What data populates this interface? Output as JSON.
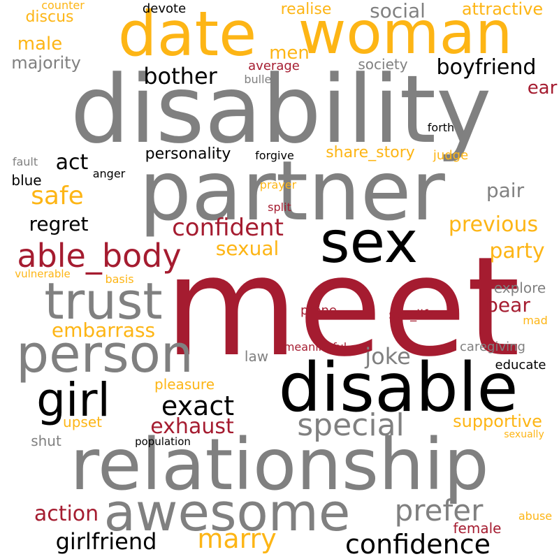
{
  "palette": {
    "gray": "#808080",
    "gold": "#fdb515",
    "crimson": "#a51c30",
    "black": "#000000"
  },
  "words": [
    {
      "text": "meet",
      "color": "crimson"
    },
    {
      "text": "disability",
      "color": "gray"
    },
    {
      "text": "partner",
      "color": "gray"
    },
    {
      "text": "relationship",
      "color": "gray"
    },
    {
      "text": "disable",
      "color": "black"
    },
    {
      "text": "date",
      "color": "gold"
    },
    {
      "text": "woman",
      "color": "gold"
    },
    {
      "text": "sex",
      "color": "black"
    },
    {
      "text": "person",
      "color": "gray"
    },
    {
      "text": "awesome",
      "color": "gray"
    },
    {
      "text": "trust",
      "color": "gray"
    },
    {
      "text": "girl",
      "color": "black"
    },
    {
      "text": "able_body",
      "color": "crimson"
    },
    {
      "text": "special",
      "color": "gray"
    },
    {
      "text": "prefer",
      "color": "gray"
    },
    {
      "text": "confidence",
      "color": "black"
    },
    {
      "text": "marry",
      "color": "gold"
    },
    {
      "text": "exact",
      "color": "black"
    },
    {
      "text": "girlfriend",
      "color": "black"
    },
    {
      "text": "safe",
      "color": "gold"
    },
    {
      "text": "confident",
      "color": "crimson"
    },
    {
      "text": "bother",
      "color": "black"
    },
    {
      "text": "boyfriend",
      "color": "black"
    },
    {
      "text": "social",
      "color": "gray"
    },
    {
      "text": "previous",
      "color": "gold"
    },
    {
      "text": "party",
      "color": "gold"
    },
    {
      "text": "joke",
      "color": "gray"
    },
    {
      "text": "act",
      "color": "black"
    },
    {
      "text": "embarrass",
      "color": "gold"
    },
    {
      "text": "exhaust",
      "color": "crimson"
    },
    {
      "text": "action",
      "color": "crimson"
    },
    {
      "text": "sexual",
      "color": "gold"
    },
    {
      "text": "pair",
      "color": "gray"
    },
    {
      "text": "bear",
      "color": "crimson"
    },
    {
      "text": "regret",
      "color": "black"
    },
    {
      "text": "men",
      "color": "gold"
    },
    {
      "text": "male",
      "color": "gold"
    },
    {
      "text": "ear",
      "color": "crimson"
    },
    {
      "text": "supportive",
      "color": "gold"
    },
    {
      "text": "attractive",
      "color": "gold"
    },
    {
      "text": "majority",
      "color": "gray"
    },
    {
      "text": "realise",
      "color": "gold"
    },
    {
      "text": "discus",
      "color": "gold"
    },
    {
      "text": "personality",
      "color": "black"
    },
    {
      "text": "share_story",
      "color": "gold"
    },
    {
      "text": "upset",
      "color": "gold"
    },
    {
      "text": "pleasure",
      "color": "gold"
    },
    {
      "text": "society",
      "color": "gray"
    },
    {
      "text": "law",
      "color": "gray"
    },
    {
      "text": "shut",
      "color": "gray"
    },
    {
      "text": "explore",
      "color": "gray"
    },
    {
      "text": "caregiving",
      "color": "gray"
    },
    {
      "text": "blue",
      "color": "black"
    },
    {
      "text": "average",
      "color": "crimson"
    },
    {
      "text": "female",
      "color": "crimson"
    },
    {
      "text": "sex_life",
      "color": "crimson"
    },
    {
      "text": "judge",
      "color": "gold"
    },
    {
      "text": "prone",
      "color": "crimson"
    },
    {
      "text": "educate",
      "color": "black"
    },
    {
      "text": "abuse",
      "color": "gold"
    },
    {
      "text": "devote",
      "color": "black"
    },
    {
      "text": "counter",
      "color": "gold"
    },
    {
      "text": "split",
      "color": "crimson"
    },
    {
      "text": "basis",
      "color": "gold"
    },
    {
      "text": "mad",
      "color": "gold"
    },
    {
      "text": "fault",
      "color": "gray"
    },
    {
      "text": "forgive",
      "color": "black"
    },
    {
      "text": "anger",
      "color": "black"
    },
    {
      "text": "prayer",
      "color": "gold"
    },
    {
      "text": "bullet",
      "color": "gray"
    },
    {
      "text": "forth",
      "color": "black"
    },
    {
      "text": "meaningful",
      "color": "crimson"
    },
    {
      "text": "vulnerable",
      "color": "gold"
    },
    {
      "text": "population",
      "color": "black"
    },
    {
      "text": "sexually",
      "color": "gold"
    }
  ]
}
